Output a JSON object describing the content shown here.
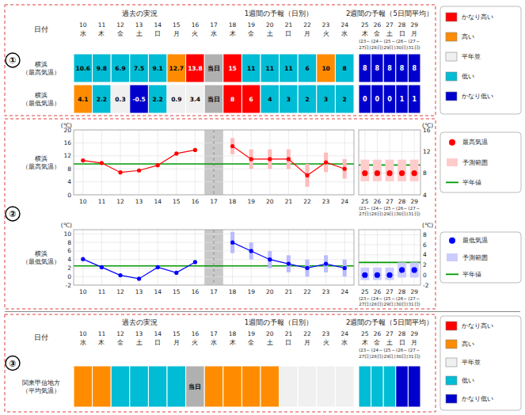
{
  "chart_data": [
    {
      "type": "table",
      "section_label": "①",
      "annotations": [
        "過去の実況",
        "1週間の予報（日別）",
        "2週間の予報（5日間平均）"
      ],
      "x_label": "日付",
      "categories": [
        10,
        11,
        12,
        13,
        14,
        15,
        16,
        17,
        18,
        19,
        20,
        21,
        22,
        23,
        24,
        25,
        26,
        27,
        28,
        29
      ],
      "weekdays": [
        "水",
        "木",
        "金",
        "土",
        "日",
        "月",
        "火",
        "水",
        "木",
        "金",
        "土",
        "日",
        "月",
        "火",
        "水",
        "木",
        "金",
        "土",
        "日",
        "月"
      ],
      "period_start": [
        null,
        null,
        null,
        null,
        null,
        null,
        null,
        null,
        null,
        null,
        null,
        null,
        null,
        null,
        null,
        "(23～",
        "(24～",
        "(25～",
        "(26～",
        "(27～"
      ],
      "period_end": [
        null,
        null,
        null,
        null,
        null,
        null,
        null,
        null,
        null,
        null,
        null,
        null,
        null,
        null,
        null,
        "27日)",
        "28日)",
        "29日)",
        "30日)",
        "31日)"
      ],
      "series": [
        {
          "name": "横浜\n（最高気温）",
          "values": [
            10.6,
            9.8,
            6.9,
            7.5,
            9.1,
            12.7,
            13.8,
            null,
            15,
            11,
            11,
            11,
            6,
            10,
            8,
            8,
            8,
            8,
            8,
            8
          ],
          "value_labels": [
            "10.6",
            "9.8",
            "6.9",
            "7.5",
            "9.1",
            "12.7",
            "13.8",
            "当日",
            "15",
            "11",
            "11",
            "11",
            "6",
            "10",
            "8",
            "8",
            "8",
            "8",
            "8",
            "8"
          ],
          "colors": [
            "#00bcd4",
            "#00bcd4",
            "#00bcd4",
            "#00bcd4",
            "#00bcd4",
            "#ff8c00",
            "#ff0000",
            "#b0b0b0",
            "#ff0000",
            "#00bcd4",
            "#00bcd4",
            "#00bcd4",
            "#00bcd4",
            "#ff8c00",
            "#00bcd4",
            "#0000cc",
            "#0000cc",
            "#0000cc",
            "#0000cc",
            "#0000cc"
          ],
          "label_colors": [
            "black",
            "black",
            "black",
            "black",
            "black",
            "black",
            "white",
            "black",
            "white",
            "black",
            "black",
            "black",
            "black",
            "black",
            "black",
            "white",
            "white",
            "white",
            "white",
            "white"
          ]
        },
        {
          "name": "横浜\n（最低気温）",
          "values": [
            4.1,
            2.2,
            0.3,
            -0.5,
            2.2,
            0.9,
            3.4,
            null,
            8,
            6,
            4,
            3,
            2,
            3,
            2,
            0,
            0,
            0,
            1,
            1
          ],
          "value_labels": [
            "4.1",
            "2.2",
            "0.3",
            "-0.5",
            "2.2",
            "0.9",
            "3.4",
            "当日",
            "8",
            "6",
            "4",
            "3",
            "2",
            "3",
            "2",
            "0",
            "0",
            "0",
            "1",
            "1"
          ],
          "colors": [
            "#ff8c00",
            "#00bcd4",
            "#f0f0f0",
            "#0000cc",
            "#00bcd4",
            "#f0f0f0",
            "#f0f0f0",
            "#b0b0b0",
            "#ff0000",
            "#ff0000",
            "#00bcd4",
            "#00bcd4",
            "#00bcd4",
            "#00bcd4",
            "#00bcd4",
            "#0000cc",
            "#0000cc",
            "#0000cc",
            "#0000cc",
            "#0000cc"
          ],
          "label_colors": [
            "black",
            "black",
            "black",
            "white",
            "black",
            "black",
            "black",
            "black",
            "white",
            "white",
            "black",
            "black",
            "black",
            "black",
            "black",
            "white",
            "white",
            "white",
            "white",
            "white"
          ]
        }
      ],
      "color_scale": {
        "labels": [
          "かなり高い",
          "高い",
          "平年並",
          "低い",
          "かなり低い"
        ],
        "colors": [
          "#ff0000",
          "#ff8c00",
          "#f0f0f0",
          "#00bcd4",
          "#0000cc"
        ]
      }
    },
    {
      "type": "line",
      "section_label": "②",
      "title": "横浜\n（最高気温）",
      "y_label": "(℃)",
      "xlim": [
        9.5,
        24.5
      ],
      "xticks": [
        10,
        11,
        12,
        13,
        14,
        15,
        16,
        17,
        18,
        19,
        20,
        21,
        22,
        23,
        24
      ],
      "ylim": [
        0,
        20
      ],
      "yticks": [
        0,
        4,
        8,
        12,
        16,
        20
      ],
      "grid": true,
      "shaded_x": [
        16.5,
        17.5
      ],
      "shade_color": "#c8c8c8",
      "reference_lines": [
        {
          "axis": "y",
          "value": 9.5,
          "color": "#009900"
        },
        {
          "axis": "x",
          "value": 17,
          "color": "gray",
          "line_style": "dashed"
        }
      ],
      "series": [
        {
          "x": [
            10,
            11,
            12,
            13,
            14,
            15,
            16
          ],
          "values": [
            10.6,
            9.8,
            6.9,
            7.5,
            9.1,
            12.7,
            13.8
          ],
          "color": "red",
          "marker": "circle",
          "line_style": "solid"
        },
        {
          "x": [
            18,
            19,
            20,
            21,
            22,
            23,
            24
          ],
          "values": [
            15,
            11,
            11,
            11,
            6,
            10,
            8
          ],
          "errors": [
            2.5,
            3.0,
            3.0,
            3.0,
            3.5,
            3.0,
            3.0
          ],
          "error_color": "#ffbbbb",
          "color": "red",
          "marker": "circle",
          "line_style": "solid"
        }
      ]
    },
    {
      "type": "range",
      "y_label": "(℃)",
      "xlim": [
        24.5,
        29.5
      ],
      "xticks": [
        25,
        26,
        27,
        28,
        29
      ],
      "period_start": [
        "(23～",
        "(24～",
        "(25～",
        "(26～",
        "(27～"
      ],
      "period_end": [
        "27日)",
        "28日)",
        "29日)",
        "30日)",
        "31日)"
      ],
      "ylim": [
        4,
        16
      ],
      "yticks": [
        4,
        8,
        12,
        16
      ],
      "grid": true,
      "legend": "right",
      "reference_lines": [
        {
          "name": "平年値",
          "axis": "y",
          "value": 9.5,
          "color": "#009900"
        }
      ],
      "series": [
        {
          "name": "予測範囲",
          "type": "bar",
          "x": [
            25,
            26,
            27,
            28,
            29
          ],
          "low": [
            6.5,
            6.5,
            6.5,
            6.5,
            6.5
          ],
          "high": [
            10.5,
            10.5,
            10.5,
            10.5,
            10.5
          ],
          "color": "#ffcccc"
        },
        {
          "name": "最高気温",
          "type": "scatter",
          "x": [
            25,
            26,
            27,
            28,
            29
          ],
          "values": [
            8,
            8,
            8,
            8,
            8
          ],
          "color": "red",
          "marker": "circle"
        }
      ]
    },
    {
      "type": "line",
      "title": "横浜\n（最低気温）",
      "y_label": "(℃)",
      "xlim": [
        9.5,
        24.5
      ],
      "xticks": [
        10,
        11,
        12,
        13,
        14,
        15,
        16,
        17,
        18,
        19,
        20,
        21,
        22,
        23,
        24
      ],
      "ylim": [
        -2,
        11
      ],
      "yticks": [
        -2,
        0,
        2,
        4,
        6,
        8,
        10
      ],
      "grid": true,
      "shaded_x": [
        16.5,
        17.5
      ],
      "shade_color": "#c8c8c8",
      "reference_lines": [
        {
          "axis": "y",
          "value": 2.5,
          "color": "#009900"
        },
        {
          "axis": "x",
          "value": 17,
          "color": "gray",
          "line_style": "dashed"
        }
      ],
      "series": [
        {
          "x": [
            10,
            11,
            12,
            13,
            14,
            15,
            16
          ],
          "values": [
            4.1,
            2.2,
            0.3,
            -0.5,
            2.2,
            0.9,
            3.4
          ],
          "color": "blue",
          "marker": "circle",
          "line_style": "solid"
        },
        {
          "x": [
            18,
            19,
            20,
            21,
            22,
            23,
            24
          ],
          "values": [
            8,
            6,
            4,
            3,
            2,
            3,
            2
          ],
          "errors": [
            2.5,
            2.0,
            2.0,
            2.0,
            2.0,
            2.0,
            2.0
          ],
          "error_color": "#bbbbff",
          "color": "blue",
          "marker": "circle",
          "line_style": "solid"
        }
      ]
    },
    {
      "type": "range",
      "y_label": "(℃)",
      "xlim": [
        24.5,
        29.5
      ],
      "xticks": [
        25,
        26,
        27,
        28,
        29
      ],
      "period_start": [
        "(23～",
        "(24～",
        "(25～",
        "(26～",
        "(27～"
      ],
      "period_end": [
        "27日)",
        "28日)",
        "29日)",
        "30日)",
        "31日)"
      ],
      "ylim": [
        -2,
        9
      ],
      "yticks": [
        -2,
        0,
        2,
        4,
        6,
        8
      ],
      "grid": true,
      "legend": "right",
      "reference_lines": [
        {
          "name": "平年値",
          "axis": "y",
          "value": 2.5,
          "color": "#009900"
        }
      ],
      "series": [
        {
          "name": "予測範囲",
          "type": "bar",
          "x": [
            25,
            26,
            27,
            28,
            29
          ],
          "low": [
            -1.0,
            -1.0,
            -1.0,
            -0.5,
            -0.5
          ],
          "high": [
            1.5,
            1.5,
            1.5,
            2.5,
            2.5
          ],
          "color": "#ccccff"
        },
        {
          "name": "最低気温",
          "type": "scatter",
          "x": [
            25,
            26,
            27,
            28,
            29
          ],
          "values": [
            0,
            0,
            0,
            1,
            1
          ],
          "color": "blue",
          "marker": "circle"
        }
      ]
    },
    {
      "type": "table",
      "section_label": "③",
      "annotations": [
        "過去の実況",
        "1週間の予報（日別）",
        "2週間の予報（5日間平均）"
      ],
      "x_label": "日付",
      "categories": [
        10,
        11,
        12,
        13,
        14,
        15,
        16,
        17,
        18,
        19,
        20,
        21,
        22,
        23,
        24,
        25,
        26,
        27,
        28,
        29
      ],
      "weekdays": [
        "水",
        "木",
        "金",
        "土",
        "日",
        "月",
        "火",
        "水",
        "木",
        "金",
        "土",
        "日",
        "月",
        "火",
        "水",
        "木",
        "金",
        "土",
        "日",
        "月"
      ],
      "period_start": [
        null,
        null,
        null,
        null,
        null,
        null,
        null,
        null,
        null,
        null,
        null,
        null,
        null,
        null,
        null,
        "(23～",
        "(24～",
        "(25～",
        "(26～",
        "(27～"
      ],
      "period_end": [
        null,
        null,
        null,
        null,
        null,
        null,
        null,
        null,
        null,
        null,
        null,
        null,
        null,
        null,
        null,
        "27日)",
        "28日)",
        "29日)",
        "30日)",
        "31日)"
      ],
      "series": [
        {
          "name": "関東甲信地方\n（平均気温）",
          "value_labels": [
            null,
            null,
            null,
            null,
            null,
            null,
            "当日",
            null,
            null,
            null,
            null,
            null,
            null,
            null,
            null,
            null,
            null,
            null,
            null,
            null
          ],
          "colors": [
            "#ff8c00",
            "#ff8c00",
            "#00bcd4",
            "#00bcd4",
            "#00bcd4",
            "#00bcd4",
            "#b0b0b0",
            "#ff8c00",
            "#ff8c00",
            "#ff8c00",
            "#ff8c00",
            "#f0f0f0",
            "#f0f0f0",
            "#f0f0f0",
            "#f0f0f0",
            "#00bcd4",
            "#00bcd4",
            "#00bcd4",
            "#0000cc",
            "#0000cc"
          ]
        }
      ],
      "color_scale": {
        "labels": [
          "かなり高い",
          "高い",
          "平年並",
          "低い",
          "かなり低い"
        ],
        "colors": [
          "#ff0000",
          "#ff8c00",
          "#f0f0f0",
          "#00bcd4",
          "#0000cc"
        ]
      }
    }
  ]
}
